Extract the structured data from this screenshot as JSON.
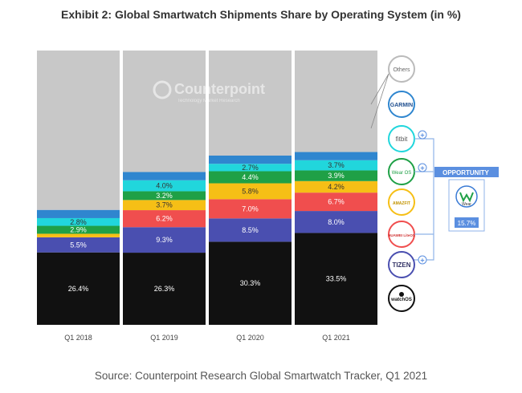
{
  "chart_data": {
    "type": "bar",
    "stacked": true,
    "title": "Exhibit 2: Global Smartwatch Shipments Share by Operating System (in %)",
    "xlabel": "",
    "ylabel": "",
    "ylim": [
      0,
      100
    ],
    "categories": [
      "Q1 2018",
      "Q1 2019",
      "Q1 2020",
      "Q1 2021"
    ],
    "series": [
      {
        "name": "watchOS",
        "color": "#111111",
        "values": [
          26.4,
          26.3,
          30.3,
          33.5
        ],
        "labels": [
          "26.4%",
          "26.3%",
          "30.3%",
          "33.5%"
        ]
      },
      {
        "name": "Tizen",
        "color": "#4a4fb0",
        "values": [
          5.5,
          9.3,
          8.5,
          8.0
        ],
        "labels": [
          "5.5%",
          "9.3%",
          "8.5%",
          "8.0%"
        ]
      },
      {
        "name": "Huawei LiteOS",
        "color": "#f04e4e",
        "values": [
          0.0,
          6.2,
          7.0,
          6.7
        ],
        "labels": [
          "",
          "6.2%",
          "7.0%",
          "6.7%"
        ]
      },
      {
        "name": "Amazfit",
        "color": "#f6bf16",
        "values": [
          1.3,
          3.7,
          5.8,
          4.2
        ],
        "labels": [
          "",
          "3.7%",
          "5.8%",
          "4.2%"
        ]
      },
      {
        "name": "Wear OS",
        "color": "#1fa046",
        "values": [
          2.9,
          3.2,
          4.4,
          3.9
        ],
        "labels": [
          "2.9%",
          "3.2%",
          "4.4%",
          "3.9%"
        ]
      },
      {
        "name": "Fitbit",
        "color": "#21d6dc",
        "values": [
          2.8,
          4.0,
          2.7,
          3.7
        ],
        "labels": [
          "2.8%",
          "4.0%",
          "2.7%",
          "3.7%"
        ]
      },
      {
        "name": "Garmin",
        "color": "#2f86cf",
        "values": [
          3.0,
          3.0,
          3.0,
          3.0
        ],
        "labels": [
          "",
          "",
          "",
          ""
        ]
      },
      {
        "name": "Others",
        "color": "#c8c8c8",
        "values": [
          58.1,
          44.3,
          38.3,
          37.0
        ],
        "labels": [
          "",
          "",
          "",
          ""
        ]
      }
    ],
    "legend": {
      "items": [
        "Others",
        "GARMIN",
        "fitbit",
        "Wear OS",
        "AMAZFIT",
        "HUAWEI LiteOS",
        "TIZEN",
        "watchOS"
      ],
      "plus_marks": [
        "+",
        "+",
        "+"
      ]
    },
    "opportunity": {
      "label": "OPPORTUNITY",
      "value_label": "15.7%",
      "icon_text": "Wear"
    },
    "watermark": {
      "brand": "Counterpoint",
      "tagline": "Technology Market Research"
    }
  },
  "source": "Source: Counterpoint Research Global Smartwatch Tracker, Q1 2021"
}
